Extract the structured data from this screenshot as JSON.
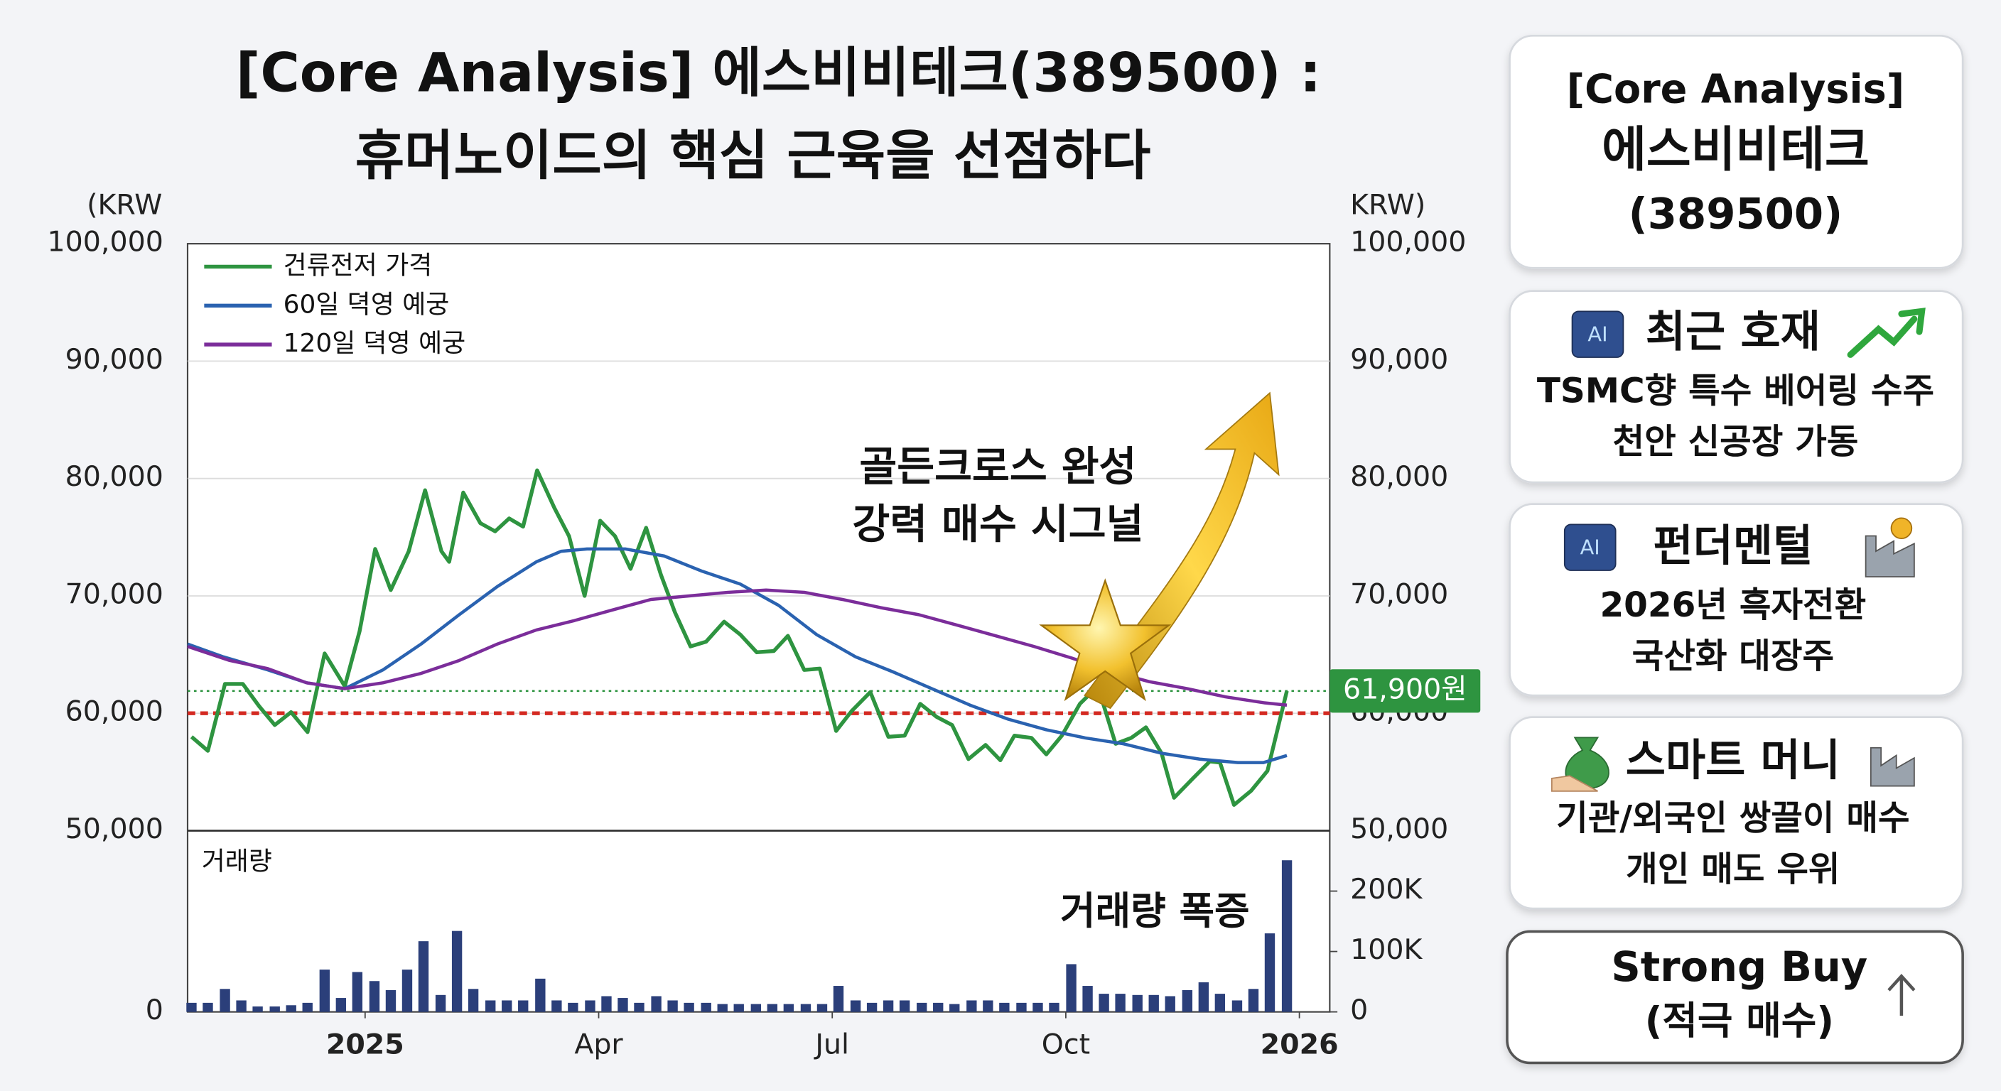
{
  "chart_data": [
    {
      "type": "line",
      "title": "[Core Analysis] 에스비비테크(389500) :",
      "subtitle": "휴머노이드의 핵심 근육을 선점하다",
      "y_label_left": "(KRW",
      "y_label_right": "KRW)",
      "xlim": [
        -2.28,
        12.39
      ],
      "ylim": [
        50000,
        100000
      ],
      "yticks": [
        {
          "value": 50000,
          "label": "50,000"
        },
        {
          "value": 60000,
          "label": "60,000"
        },
        {
          "value": 70000,
          "label": "70,000"
        },
        {
          "value": 80000,
          "label": "80,000"
        },
        {
          "value": 90000,
          "label": "90,000"
        },
        {
          "value": 100000,
          "label": "100,000"
        }
      ],
      "grid": true,
      "legend": "upper left",
      "series": [
        {
          "name": "건류전저 가격",
          "color": "#2e9440",
          "x": [
            -2.23,
            -2.02,
            -1.8,
            -1.57,
            -1.36,
            -1.16,
            -0.95,
            -0.74,
            -0.52,
            -0.26,
            -0.07,
            0.13,
            0.33,
            0.56,
            0.77,
            0.98,
            1.08,
            1.26,
            1.48,
            1.67,
            1.85,
            2.03,
            2.21,
            2.43,
            2.62,
            2.82,
            3.02,
            3.21,
            3.41,
            3.61,
            3.8,
            3.98,
            4.18,
            4.38,
            4.61,
            4.82,
            5.03,
            5.25,
            5.43,
            5.64,
            5.84,
            6.05,
            6.25,
            6.49,
            6.72,
            6.93,
            7.13,
            7.34,
            7.54,
            7.75,
            7.97,
            8.16,
            8.34,
            8.56,
            8.75,
            8.95,
            9.18,
            9.41,
            9.64,
            9.84,
            10.03,
            10.23,
            10.39,
            10.64,
            10.85,
            10.98,
            11.16,
            11.38,
            11.59,
            11.84
          ],
          "values": [
            58000,
            56800,
            62500,
            62500,
            60600,
            59000,
            60100,
            58400,
            65100,
            62300,
            67000,
            74000,
            70500,
            73800,
            79000,
            73800,
            72900,
            78800,
            76200,
            75500,
            76600,
            75900,
            80700,
            77500,
            75100,
            70000,
            76400,
            75100,
            72300,
            75800,
            71800,
            68600,
            65700,
            66100,
            67800,
            66700,
            65200,
            65300,
            66600,
            63700,
            63800,
            58500,
            60200,
            61800,
            58000,
            58100,
            60800,
            59700,
            59000,
            56100,
            57300,
            56000,
            58100,
            57900,
            56500,
            58100,
            60800,
            62300,
            57400,
            57900,
            58800,
            56600,
            52800,
            54500,
            55900,
            55800,
            52200,
            53400,
            55100,
            61900
          ]
        },
        {
          "name": "60일 뎍영 예궁",
          "color": "#2a62b0",
          "x": [
            -2.28,
            -1.82,
            -1.25,
            -0.75,
            -0.26,
            0.23,
            0.72,
            1.21,
            1.7,
            2.2,
            2.52,
            2.85,
            3.34,
            3.84,
            4.33,
            4.82,
            5.31,
            5.8,
            6.3,
            6.79,
            7.28,
            7.77,
            8.26,
            8.75,
            9.25,
            9.74,
            10.23,
            10.72,
            11.21,
            11.54,
            11.84
          ],
          "values": [
            65900,
            64800,
            63700,
            62600,
            62100,
            63700,
            65900,
            68400,
            70800,
            72900,
            73800,
            74000,
            74000,
            73400,
            72100,
            71000,
            69200,
            66700,
            64800,
            63500,
            62100,
            60700,
            59500,
            58600,
            57900,
            57400,
            56600,
            56100,
            55800,
            55800,
            56400
          ]
        },
        {
          "name": "120일 뎍영 예궁",
          "color": "#7b2d9a",
          "x": [
            -2.28,
            -1.74,
            -1.25,
            -0.75,
            -0.26,
            0.23,
            0.72,
            1.21,
            1.7,
            2.2,
            2.69,
            3.18,
            3.67,
            4.16,
            4.66,
            5.15,
            5.64,
            6.13,
            6.62,
            7.11,
            7.61,
            8.1,
            8.59,
            9.08,
            9.57,
            10.07,
            10.56,
            11.05,
            11.54,
            11.84
          ],
          "values": [
            65700,
            64500,
            63800,
            62600,
            62100,
            62600,
            63400,
            64500,
            65900,
            67100,
            67900,
            68800,
            69700,
            70000,
            70300,
            70500,
            70300,
            69700,
            69000,
            68400,
            67500,
            66600,
            65700,
            64700,
            63600,
            62700,
            62100,
            61400,
            60900,
            60700
          ]
        }
      ],
      "reference_lines": [
        {
          "value": 60000,
          "color": "#d42a22",
          "style": "dashed"
        },
        {
          "value": 61900,
          "color": "#2e9440",
          "style": "dotted",
          "label": "61,900원"
        }
      ],
      "annotations": [
        "골든크로스 완성",
        "강력 매수 시그널"
      ]
    },
    {
      "type": "bar",
      "label": "거래량",
      "annotation": "거래량 폭증",
      "color": "#2b3f7a",
      "xlim": [
        -2.28,
        12.39
      ],
      "xticks": [
        {
          "value": 0,
          "label": "2025"
        },
        {
          "value": 3,
          "label": "Apr"
        },
        {
          "value": 6,
          "label": "Jul"
        },
        {
          "value": 9,
          "label": "Oct"
        },
        {
          "value": 12,
          "label": "2026"
        }
      ],
      "ylim": [
        0,
        300000
      ],
      "yticks": [
        0,
        {
          "value": 100000,
          "label": "100K"
        },
        {
          "value": 200000,
          "label": "200K"
        }
      ],
      "left_yticks": [
        0
      ],
      "x": [
        -2.23,
        -2.02,
        -1.8,
        -1.59,
        -1.38,
        -1.16,
        -0.95,
        -0.74,
        -0.52,
        -0.31,
        -0.1,
        0.12,
        0.33,
        0.54,
        0.75,
        0.97,
        1.18,
        1.39,
        1.61,
        1.82,
        2.03,
        2.25,
        2.46,
        2.67,
        2.89,
        3.1,
        3.31,
        3.52,
        3.74,
        3.95,
        4.16,
        4.38,
        4.59,
        4.8,
        5.02,
        5.23,
        5.44,
        5.66,
        5.87,
        6.08,
        6.3,
        6.51,
        6.72,
        6.93,
        7.15,
        7.36,
        7.57,
        7.79,
        8.0,
        8.21,
        8.43,
        8.64,
        8.85,
        9.07,
        9.28,
        9.49,
        9.7,
        9.92,
        10.13,
        10.34,
        10.56,
        10.77,
        10.98,
        11.2,
        11.41,
        11.62,
        11.84
      ],
      "values": [
        15000,
        15000,
        38000,
        19000,
        9000,
        9000,
        11000,
        15000,
        70000,
        23000,
        66000,
        51000,
        36000,
        70000,
        117000,
        28000,
        134000,
        38000,
        19000,
        19000,
        19000,
        55000,
        19000,
        15000,
        19000,
        26000,
        23000,
        15000,
        26000,
        19000,
        15000,
        15000,
        13000,
        13000,
        13000,
        13000,
        13000,
        13000,
        13000,
        43000,
        19000,
        15000,
        19000,
        19000,
        15000,
        15000,
        13000,
        19000,
        19000,
        15000,
        15000,
        15000,
        15000,
        79000,
        43000,
        30000,
        30000,
        28000,
        28000,
        26000,
        36000,
        49000,
        30000,
        19000,
        38000,
        130000,
        251000
      ]
    }
  ],
  "side_panel": {
    "header": [
      "[Core Analysis]",
      "에스비비테크",
      "(389500)"
    ],
    "cards": [
      {
        "icon_text": "AI",
        "title": "최근 호재",
        "lines": [
          "TSMC향 특수 베어링 수주",
          "천안 신공장 가동"
        ]
      },
      {
        "icon_text": "AI",
        "title": "펀더멘털",
        "lines": [
          "2026년 흑자전환",
          "국산화 대장주"
        ]
      },
      {
        "title": "스마트 머니",
        "lines": [
          "기관/외국인 쌍끌이 매수",
          "개인 매도 우위"
        ]
      }
    ],
    "recommendation": [
      "Strong Buy",
      "(적극 매수)"
    ]
  }
}
